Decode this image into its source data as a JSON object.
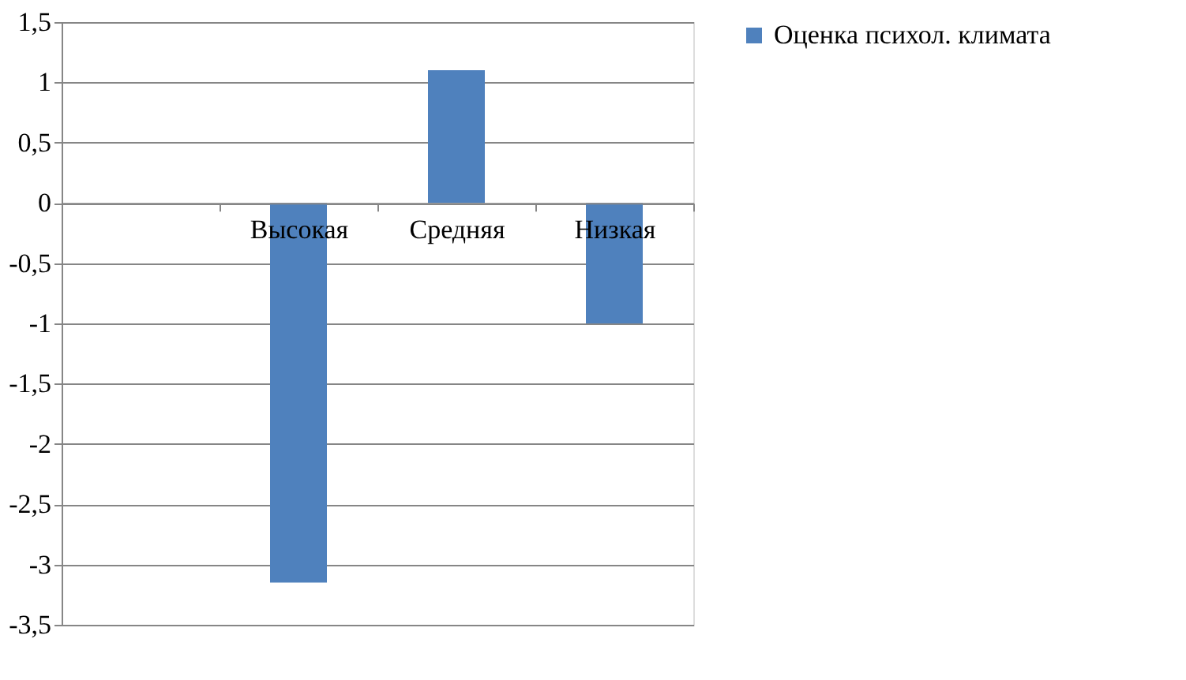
{
  "chart_data": {
    "type": "bar",
    "categories": [
      null,
      "Высокая",
      "Средняя",
      "Низкая"
    ],
    "series": [
      {
        "name": "Оценка психол. климата",
        "color": "#4f81bd",
        "values": [
          null,
          -3.15,
          1.1,
          -1
        ]
      }
    ],
    "ylim": [
      -3.5,
      1.5
    ],
    "yticks": [
      {
        "value": -3.5,
        "label": "-3,5"
      },
      -3,
      {
        "value": -2.5,
        "label": "-2,5"
      },
      -2,
      {
        "value": -1.5,
        "label": "-1,5"
      },
      -1,
      {
        "value": -0.5,
        "label": "-0,5"
      },
      0,
      {
        "value": 0.5,
        "label": "0,5"
      },
      1,
      {
        "value": 1.5,
        "label": "1,5"
      }
    ],
    "grid": "y",
    "legend": "right"
  }
}
